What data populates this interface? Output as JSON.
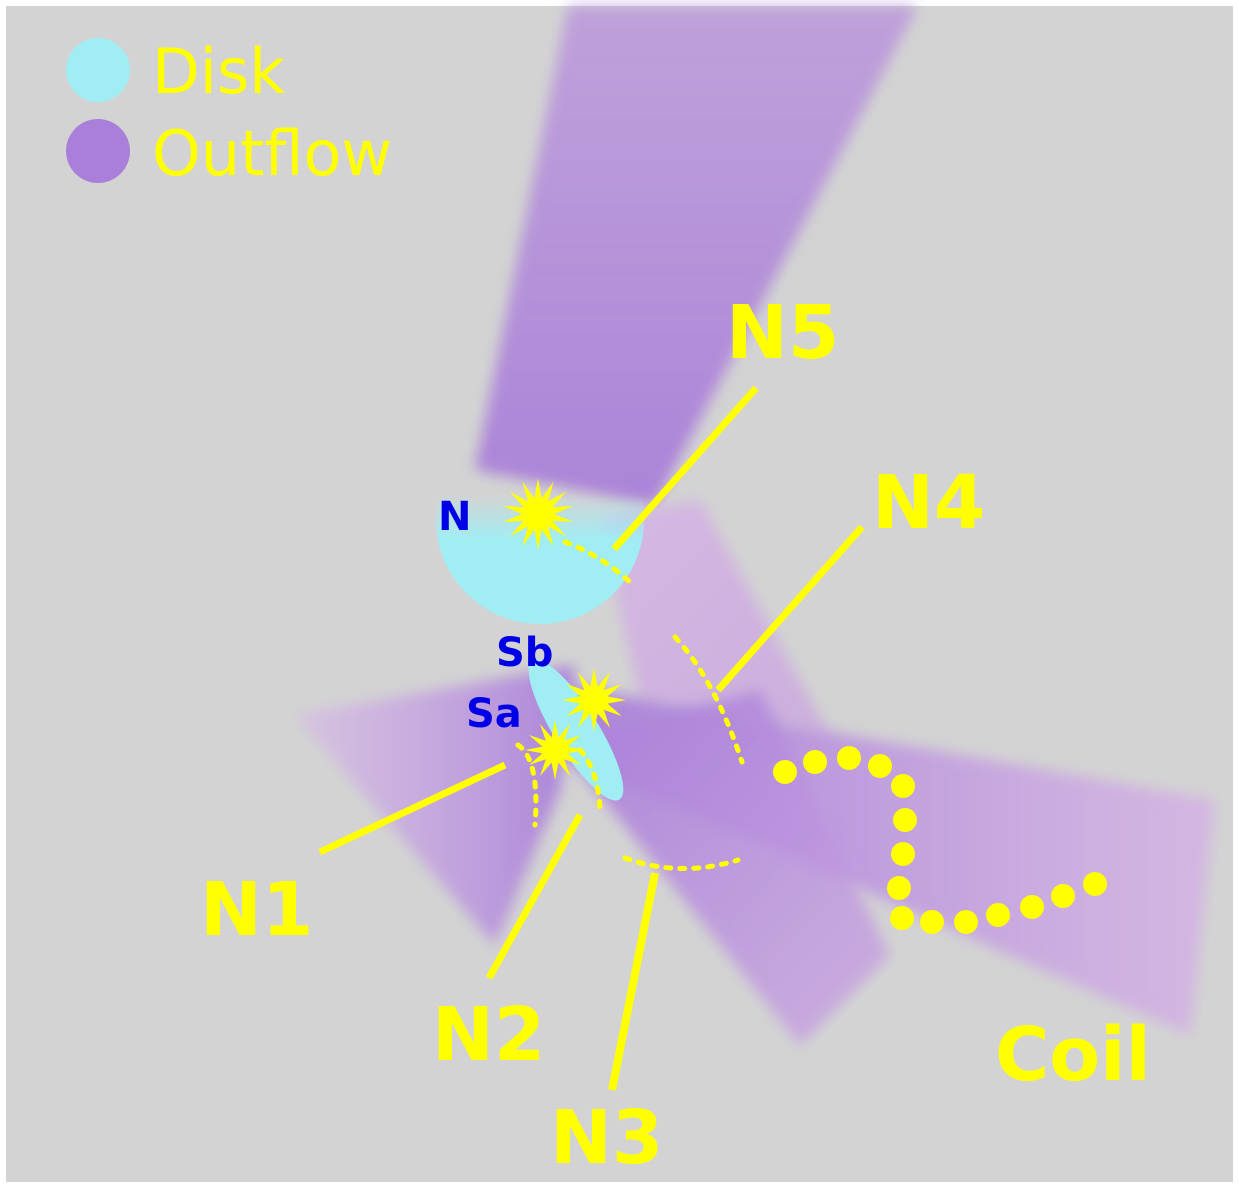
{
  "colors": {
    "background": "#d3d3d3",
    "disk": "#a0eef4",
    "outflow": "#a97fd9",
    "annotation": "#ffff00",
    "source_label": "#0000e6"
  },
  "legend": {
    "items": [
      {
        "label": "Disk",
        "color": "#a0eef4",
        "icon": "disk-swatch-icon"
      },
      {
        "label": "Outflow",
        "color": "#a97fd9",
        "icon": "outflow-swatch-icon"
      }
    ]
  },
  "sources": {
    "N": "N",
    "Sb": "Sb",
    "Sa": "Sa"
  },
  "features": {
    "N1": "N1",
    "N2": "N2",
    "N3": "N3",
    "N4": "N4",
    "N5": "N5",
    "coil": "Coil"
  },
  "icons": [
    "star-burst-icon"
  ]
}
